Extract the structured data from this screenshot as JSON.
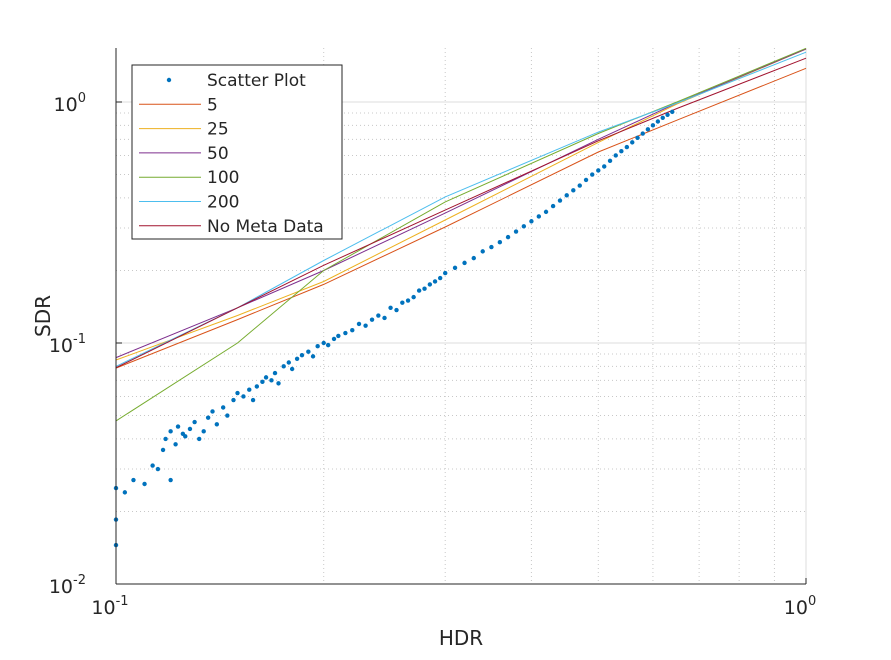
{
  "chart_data": {
    "type": "scatter",
    "xscale": "log",
    "yscale": "log",
    "xlabel": "HDR",
    "ylabel": "SDR",
    "xlim": [
      0.1,
      1
    ],
    "ylim": [
      0.01,
      1.67
    ],
    "grid": "on (major + minor dotted)",
    "legend_placement": "top-left",
    "x_ticks": [
      {
        "value": 0.1,
        "base": "10",
        "exp": "-1"
      },
      {
        "value": 1,
        "base": "10",
        "exp": "0"
      }
    ],
    "y_ticks": [
      {
        "value": 0.01,
        "base": "10",
        "exp": "-2"
      },
      {
        "value": 0.1,
        "base": "10",
        "exp": "-1"
      },
      {
        "value": 1,
        "base": "10",
        "exp": "0"
      }
    ],
    "scatter": {
      "name": "Scatter Plot",
      "color": "#0072BD",
      "points": [
        [
          0.1,
          0.0145
        ],
        [
          0.1,
          0.0185
        ],
        [
          0.1,
          0.025
        ],
        [
          0.103,
          0.024
        ],
        [
          0.106,
          0.027
        ],
        [
          0.11,
          0.026
        ],
        [
          0.113,
          0.031
        ],
        [
          0.115,
          0.03
        ],
        [
          0.117,
          0.036
        ],
        [
          0.118,
          0.04
        ],
        [
          0.12,
          0.043
        ],
        [
          0.12,
          0.027
        ],
        [
          0.122,
          0.038
        ],
        [
          0.123,
          0.045
        ],
        [
          0.125,
          0.042
        ],
        [
          0.126,
          0.041
        ],
        [
          0.128,
          0.044
        ],
        [
          0.13,
          0.047
        ],
        [
          0.132,
          0.04
        ],
        [
          0.134,
          0.043
        ],
        [
          0.136,
          0.049
        ],
        [
          0.138,
          0.052
        ],
        [
          0.14,
          0.046
        ],
        [
          0.143,
          0.054
        ],
        [
          0.145,
          0.05
        ],
        [
          0.148,
          0.058
        ],
        [
          0.15,
          0.062
        ],
        [
          0.153,
          0.06
        ],
        [
          0.156,
          0.064
        ],
        [
          0.158,
          0.058
        ],
        [
          0.16,
          0.066
        ],
        [
          0.163,
          0.069
        ],
        [
          0.165,
          0.072
        ],
        [
          0.168,
          0.07
        ],
        [
          0.17,
          0.075
        ],
        [
          0.172,
          0.068
        ],
        [
          0.175,
          0.08
        ],
        [
          0.178,
          0.083
        ],
        [
          0.18,
          0.078
        ],
        [
          0.183,
          0.086
        ],
        [
          0.186,
          0.089
        ],
        [
          0.19,
          0.092
        ],
        [
          0.193,
          0.088
        ],
        [
          0.196,
          0.097
        ],
        [
          0.2,
          0.1
        ],
        [
          0.203,
          0.098
        ],
        [
          0.207,
          0.104
        ],
        [
          0.21,
          0.107
        ],
        [
          0.215,
          0.11
        ],
        [
          0.22,
          0.113
        ],
        [
          0.225,
          0.12
        ],
        [
          0.23,
          0.118
        ],
        [
          0.235,
          0.125
        ],
        [
          0.24,
          0.13
        ],
        [
          0.245,
          0.127
        ],
        [
          0.25,
          0.14
        ],
        [
          0.255,
          0.137
        ],
        [
          0.26,
          0.147
        ],
        [
          0.265,
          0.15
        ],
        [
          0.27,
          0.155
        ],
        [
          0.275,
          0.165
        ],
        [
          0.28,
          0.168
        ],
        [
          0.285,
          0.175
        ],
        [
          0.29,
          0.18
        ],
        [
          0.295,
          0.186
        ],
        [
          0.3,
          0.195
        ],
        [
          0.31,
          0.205
        ],
        [
          0.32,
          0.215
        ],
        [
          0.33,
          0.225
        ],
        [
          0.34,
          0.24
        ],
        [
          0.35,
          0.25
        ],
        [
          0.36,
          0.262
        ],
        [
          0.37,
          0.275
        ],
        [
          0.38,
          0.29
        ],
        [
          0.39,
          0.305
        ],
        [
          0.4,
          0.32
        ],
        [
          0.41,
          0.335
        ],
        [
          0.42,
          0.35
        ],
        [
          0.43,
          0.37
        ],
        [
          0.44,
          0.39
        ],
        [
          0.45,
          0.41
        ],
        [
          0.46,
          0.43
        ],
        [
          0.47,
          0.45
        ],
        [
          0.48,
          0.475
        ],
        [
          0.49,
          0.5
        ],
        [
          0.5,
          0.52
        ],
        [
          0.51,
          0.54
        ],
        [
          0.52,
          0.57
        ],
        [
          0.53,
          0.6
        ],
        [
          0.54,
          0.625
        ],
        [
          0.55,
          0.65
        ],
        [
          0.56,
          0.68
        ],
        [
          0.57,
          0.71
        ],
        [
          0.58,
          0.74
        ],
        [
          0.59,
          0.77
        ],
        [
          0.6,
          0.8
        ],
        [
          0.61,
          0.83
        ],
        [
          0.62,
          0.86
        ],
        [
          0.63,
          0.885
        ],
        [
          0.64,
          0.91
        ]
      ]
    },
    "x": [
      0.1,
      0.15,
      0.2,
      0.3,
      0.5,
      0.65,
      1
    ],
    "series": [
      {
        "name": "5",
        "color": "#D95319",
        "values": [
          0.0787,
          0.125,
          0.175,
          0.303,
          0.62,
          0.84,
          1.38
        ]
      },
      {
        "name": "25",
        "color": "#EDB120",
        "values": [
          0.085,
          0.13,
          0.18,
          0.324,
          0.68,
          0.98,
          1.66
        ]
      },
      {
        "name": "50",
        "color": "#7E2F8E",
        "values": [
          0.087,
          0.14,
          0.2,
          0.346,
          0.7,
          0.99,
          1.66
        ]
      },
      {
        "name": "100",
        "color": "#77AC30",
        "values": [
          0.0475,
          0.1,
          0.2,
          0.385,
          0.74,
          1.0,
          1.67
        ]
      },
      {
        "name": "200",
        "color": "#4DBEEE",
        "values": [
          0.08,
          0.14,
          0.22,
          0.404,
          0.75,
          0.99,
          1.61
        ]
      },
      {
        "name": "No Meta Data",
        "color": "#A2142F",
        "values": [
          0.079,
          0.14,
          0.21,
          0.356,
          0.69,
          0.94,
          1.52
        ]
      }
    ]
  }
}
